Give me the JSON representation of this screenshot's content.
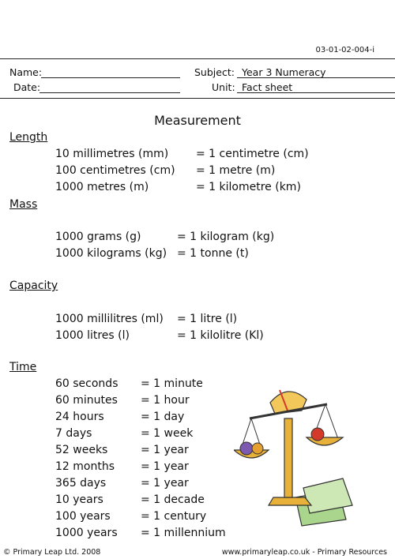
{
  "header": {
    "code": "03-01-02-004-i",
    "name_label": "Name:",
    "subject_label": "Subject:",
    "subject_value": "Year 3 Numeracy",
    "date_label": "Date:",
    "unit_label": "Unit:",
    "unit_value": "Fact sheet"
  },
  "title": "Measurement",
  "sections": {
    "length": {
      "heading": "Length",
      "rows": [
        {
          "left": "10 millimetres (mm)",
          "right": "= 1 centimetre (cm)"
        },
        {
          "left": "100 centimetres (cm)",
          "right": "= 1 metre (m)"
        },
        {
          "left": "1000 metres (m)",
          "right": "= 1 kilometre (km)"
        }
      ]
    },
    "mass": {
      "heading": "Mass",
      "rows": [
        {
          "left": "1000 grams (g)",
          "right": "= 1 kilogram (kg)"
        },
        {
          "left": "1000 kilograms (kg)",
          "right": "= 1 tonne (t)"
        }
      ]
    },
    "capacity": {
      "heading": "Capacity",
      "rows": [
        {
          "left": "1000 millilitres (ml)",
          "right": "= 1 litre (l)"
        },
        {
          "left": "1000 litres (l)",
          "right": "= 1 kilolitre (Kl)"
        }
      ]
    },
    "time": {
      "heading": "Time",
      "rows": [
        {
          "left": "60 seconds",
          "right": "= 1 minute"
        },
        {
          "left": "60 minutes",
          "right": "= 1 hour"
        },
        {
          "left": "24 hours",
          "right": "= 1 day"
        },
        {
          "left": "7 days",
          "right": "= 1 week"
        },
        {
          "left": "52 weeks",
          "right": "= 1 year"
        },
        {
          "left": "12 months",
          "right": "= 1 year"
        },
        {
          "left": "365 days",
          "right": "= 1 year"
        },
        {
          "left": "10 years",
          "right": "= 1 decade"
        },
        {
          "left": "100 years",
          "right": "= 1 century"
        },
        {
          "left": "1000 years",
          "right": "= 1 millennium"
        }
      ]
    }
  },
  "footer": {
    "copyright": "© Primary Leap Ltd. 2008",
    "site": "www.primaryleap.co.uk  -  Primary Resources"
  },
  "colors": {
    "scale_gold": "#e8b23a",
    "paper_green": "#a9d58c",
    "fruit_red": "#d33a2a",
    "ball_purple": "#7b5ab0"
  }
}
